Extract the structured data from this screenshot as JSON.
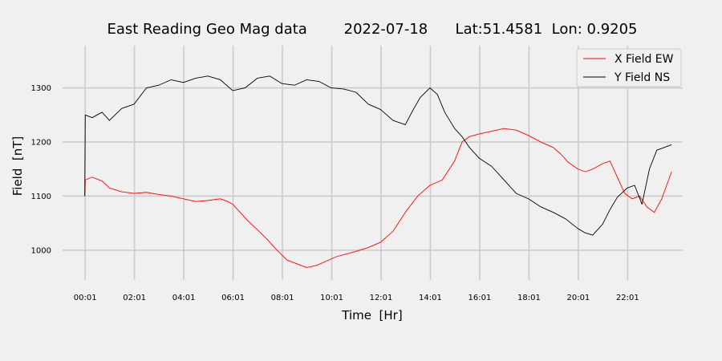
{
  "chart_data": {
    "type": "line",
    "title": "East Reading Geo Mag data        2022-07-18      Lat:51.4581  Lon: 0.9205",
    "xlabel": "Time  [Hr]",
    "ylabel": "Field  [nT]",
    "x_unit": "hours",
    "xlim": [
      -0.9,
      24.25
    ],
    "ylim": [
      945,
      1378
    ],
    "x_ticks": [
      {
        "value": 0.0167,
        "label": "00:01"
      },
      {
        "value": 2.0167,
        "label": "02:01"
      },
      {
        "value": 4.0167,
        "label": "04:01"
      },
      {
        "value": 6.0167,
        "label": "06:01"
      },
      {
        "value": 8.0167,
        "label": "08:01"
      },
      {
        "value": 10.0167,
        "label": "10:01"
      },
      {
        "value": 12.0167,
        "label": "12:01"
      },
      {
        "value": 14.0167,
        "label": "14:01"
      },
      {
        "value": 16.0167,
        "label": "16:01"
      },
      {
        "value": 18.0167,
        "label": "18:01"
      },
      {
        "value": 20.0167,
        "label": "20:01"
      },
      {
        "value": 22.0167,
        "label": "22:01"
      }
    ],
    "y_ticks": [
      {
        "value": 1000,
        "label": "1000"
      },
      {
        "value": 1100,
        "label": "1100"
      },
      {
        "value": 1200,
        "label": "1200"
      },
      {
        "value": 1300,
        "label": "1300"
      }
    ],
    "grid": true,
    "legend_position": "top-right",
    "series": [
      {
        "name": "X Field EW",
        "color": "#ff0000",
        "x": [
          0.0,
          0.02,
          0.3,
          0.7,
          1.0,
          1.5,
          2.0,
          2.5,
          3.0,
          3.5,
          4.0,
          4.5,
          5.0,
          5.5,
          5.8,
          6.0,
          6.3,
          6.6,
          7.0,
          7.4,
          7.8,
          8.2,
          8.6,
          9.0,
          9.4,
          9.8,
          10.2,
          10.6,
          11.0,
          11.5,
          12.0,
          12.5,
          13.0,
          13.5,
          14.0,
          14.5,
          15.0,
          15.3,
          15.6,
          16.0,
          16.5,
          17.0,
          17.5,
          18.0,
          18.5,
          19.0,
          19.3,
          19.6,
          20.0,
          20.3,
          20.6,
          21.0,
          21.3,
          21.6,
          21.9,
          22.2,
          22.5,
          22.8,
          23.1,
          23.4,
          23.6,
          23.8
        ],
        "y": [
          1100,
          1130,
          1135,
          1128,
          1115,
          1108,
          1105,
          1107,
          1103,
          1100,
          1095,
          1090,
          1092,
          1095,
          1090,
          1085,
          1070,
          1055,
          1038,
          1020,
          1000,
          982,
          975,
          968,
          972,
          980,
          988,
          993,
          998,
          1005,
          1015,
          1035,
          1070,
          1100,
          1120,
          1130,
          1165,
          1200,
          1210,
          1215,
          1220,
          1225,
          1222,
          1212,
          1200,
          1190,
          1178,
          1163,
          1150,
          1145,
          1150,
          1160,
          1165,
          1135,
          1105,
          1095,
          1100,
          1080,
          1070,
          1095,
          1120,
          1145
        ]
      },
      {
        "name": "Y Field NS",
        "color": "#000000",
        "x": [
          0.0,
          0.02,
          0.3,
          0.7,
          1.0,
          1.5,
          2.0,
          2.5,
          3.0,
          3.5,
          4.0,
          4.5,
          5.0,
          5.5,
          6.0,
          6.5,
          7.0,
          7.5,
          8.0,
          8.5,
          9.0,
          9.5,
          10.0,
          10.5,
          11.0,
          11.5,
          12.0,
          12.5,
          13.0,
          13.3,
          13.6,
          14.0,
          14.3,
          14.6,
          15.0,
          15.3,
          15.6,
          16.0,
          16.5,
          17.0,
          17.5,
          18.0,
          18.5,
          19.0,
          19.5,
          20.0,
          20.3,
          20.6,
          21.0,
          21.3,
          21.6,
          22.0,
          22.3,
          22.6,
          22.9,
          23.2,
          23.5,
          23.8
        ],
        "y": [
          1100,
          1250,
          1245,
          1255,
          1240,
          1262,
          1270,
          1300,
          1305,
          1315,
          1310,
          1318,
          1322,
          1315,
          1295,
          1300,
          1318,
          1322,
          1308,
          1305,
          1315,
          1312,
          1300,
          1298,
          1292,
          1270,
          1260,
          1240,
          1232,
          1258,
          1282,
          1300,
          1288,
          1255,
          1225,
          1210,
          1190,
          1170,
          1155,
          1130,
          1105,
          1095,
          1080,
          1070,
          1058,
          1040,
          1032,
          1028,
          1048,
          1075,
          1098,
          1115,
          1120,
          1085,
          1150,
          1185,
          1190,
          1195
        ]
      }
    ]
  }
}
